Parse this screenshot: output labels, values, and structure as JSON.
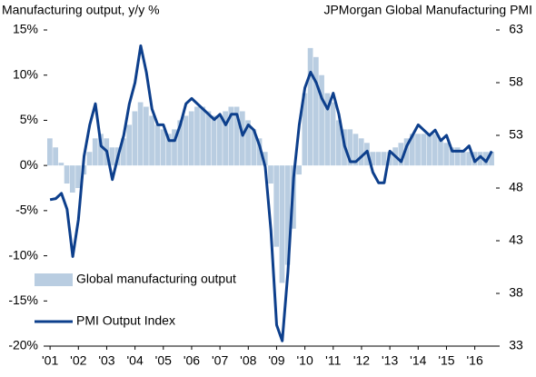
{
  "chart_data": {
    "type": "bar-line",
    "title": "Manufacturing output, y/y %",
    "title_right": "JPMorgan Global Manufacturing PMI",
    "x": [
      2001.0,
      2001.2,
      2001.4,
      2001.6,
      2001.8,
      2002.0,
      2002.2,
      2002.4,
      2002.6,
      2002.8,
      2003.0,
      2003.2,
      2003.4,
      2003.6,
      2003.8,
      2004.0,
      2004.2,
      2004.4,
      2004.6,
      2004.8,
      2005.0,
      2005.2,
      2005.4,
      2005.6,
      2005.8,
      2006.0,
      2006.2,
      2006.4,
      2006.6,
      2006.8,
      2007.0,
      2007.2,
      2007.4,
      2007.6,
      2007.8,
      2008.0,
      2008.2,
      2008.4,
      2008.6,
      2008.8,
      2009.0,
      2009.2,
      2009.4,
      2009.6,
      2009.8,
      2010.0,
      2010.2,
      2010.4,
      2010.6,
      2010.8,
      2011.0,
      2011.2,
      2011.4,
      2011.6,
      2011.8,
      2012.0,
      2012.2,
      2012.4,
      2012.6,
      2012.8,
      2013.0,
      2013.2,
      2013.4,
      2013.6,
      2013.8,
      2014.0,
      2014.2,
      2014.4,
      2014.6,
      2014.8,
      2015.0,
      2015.2,
      2015.4,
      2015.6,
      2015.8,
      2016.0,
      2016.2,
      2016.4,
      2016.6
    ],
    "series": [
      {
        "name": "Global manufacturing output",
        "kind": "bar",
        "color": "#b9cde1",
        "values": [
          3,
          2,
          0.3,
          -2,
          -3,
          -2.5,
          -1,
          1.5,
          3,
          3.5,
          3,
          2,
          2,
          3,
          4.5,
          6,
          7,
          6.5,
          5.5,
          4.5,
          4,
          3.5,
          4,
          5,
          5.5,
          6,
          6.5,
          6.5,
          6,
          5.5,
          5.5,
          6,
          6.5,
          6.5,
          6,
          5,
          4,
          3,
          1.5,
          -2,
          -9,
          -13,
          -11,
          -7,
          -1,
          8,
          13,
          12,
          10,
          8,
          7,
          5,
          4,
          4,
          3.5,
          3,
          2.5,
          1.5,
          1.5,
          1.5,
          1.5,
          2,
          2.5,
          3,
          3.5,
          3.5,
          3.5,
          3.5,
          3.5,
          3,
          2.5,
          2,
          2,
          1.5,
          1.5,
          1.5,
          1.5,
          1.5,
          1.5
        ]
      },
      {
        "name": "PMI Output Index",
        "kind": "line",
        "axis": "y2",
        "color": "#0d3f8c",
        "values": [
          46.9,
          47,
          47.5,
          46,
          41.5,
          45,
          51,
          54,
          56,
          52,
          51.5,
          48.8,
          51,
          53,
          56,
          58,
          61.5,
          59,
          55.5,
          54,
          54,
          52.5,
          52.5,
          54,
          56,
          56.5,
          56,
          55.5,
          55,
          54.5,
          55,
          54,
          55,
          55,
          53,
          54,
          53.5,
          52,
          50,
          44,
          35,
          33.5,
          40,
          49,
          54,
          57.5,
          59,
          58,
          56.5,
          55.5,
          57,
          55,
          52,
          50.5,
          50.5,
          51,
          51.5,
          49.5,
          48.5,
          48.5,
          51.5,
          51,
          50.5,
          52,
          53,
          54,
          53.5,
          53,
          53.5,
          52.5,
          53,
          51.5,
          51.5,
          51.5,
          52,
          50.5,
          51,
          50.5,
          51.5
        ]
      }
    ],
    "xlim": [
      2000.9,
      2016.75
    ],
    "xticks": [
      {
        "value": 2001,
        "label": "'01"
      },
      {
        "value": 2002,
        "label": "'02"
      },
      {
        "value": 2003,
        "label": "'03"
      },
      {
        "value": 2004,
        "label": "'04"
      },
      {
        "value": 2005,
        "label": "'05"
      },
      {
        "value": 2006,
        "label": "'06"
      },
      {
        "value": 2007,
        "label": "'07"
      },
      {
        "value": 2008,
        "label": "'08"
      },
      {
        "value": 2009,
        "label": "'09"
      },
      {
        "value": 2010,
        "label": "'10"
      },
      {
        "value": 2011,
        "label": "'11"
      },
      {
        "value": 2012,
        "label": "'12"
      },
      {
        "value": 2013,
        "label": "'13"
      },
      {
        "value": 2014,
        "label": "'14"
      },
      {
        "value": 2015,
        "label": "'15"
      },
      {
        "value": 2016,
        "label": "'16"
      }
    ],
    "ylim": [
      -20,
      15
    ],
    "yticks": [
      {
        "value": 15,
        "label": "15%"
      },
      {
        "value": 10,
        "label": "10%"
      },
      {
        "value": 5,
        "label": "5%"
      },
      {
        "value": 0,
        "label": "0%"
      },
      {
        "value": -5,
        "label": "-5%"
      },
      {
        "value": -10,
        "label": "-10%"
      },
      {
        "value": -15,
        "label": "-15%"
      },
      {
        "value": -20,
        "label": "-20%"
      }
    ],
    "y2lim": [
      33,
      63
    ],
    "y2ticks": [
      63,
      58,
      53,
      48,
      43,
      38,
      33
    ],
    "legend": "lower left"
  }
}
